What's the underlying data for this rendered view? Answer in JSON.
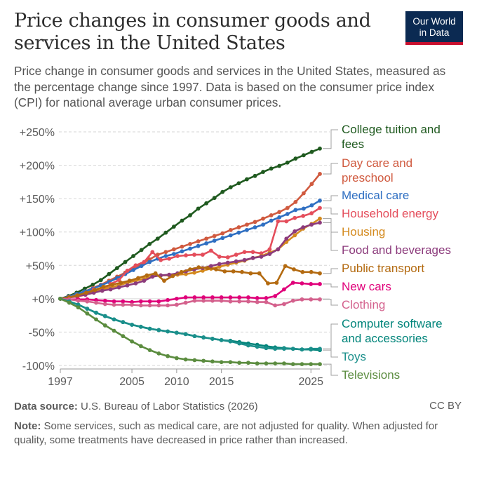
{
  "header": {
    "title": "Price changes in consumer goods and services in the United States",
    "subtitle": "Price change in consumer goods and services in the United States, measured as the percentage change since 1997. Data is based on the consumer price index (CPI) for national average urban consumer prices.",
    "logo_line1": "Our World",
    "logo_line2": "in Data"
  },
  "footer": {
    "source_label": "Data source:",
    "source_text": "U.S. Bureau of Labor Statistics (2026)",
    "license": "CC BY",
    "note_label": "Note:",
    "note_text": "Some services, such as medical care, are not adjusted for quality. When adjusted for quality, some treatments have decreased in price rather than increased."
  },
  "chart_data": {
    "type": "line",
    "xlim": [
      1997,
      2026
    ],
    "ylim": [
      -100,
      250
    ],
    "x_ticks": [
      1997,
      2005,
      2010,
      2015,
      2025
    ],
    "x_tick_labels": [
      "1997",
      "2005",
      "2010",
      "2015",
      "2025"
    ],
    "y_ticks": [
      -100,
      -50,
      0,
      50,
      100,
      150,
      200,
      250
    ],
    "y_tick_labels": [
      "-100%",
      "-50%",
      "+0%",
      "+50%",
      "+100%",
      "+150%",
      "+200%",
      "+250%"
    ],
    "grid": "horizontal dashed",
    "legend": "right, labels at line ends",
    "series": [
      {
        "name": "College tuition and fees",
        "color": "#1f5a1f",
        "values": [
          0,
          4,
          9,
          15,
          21,
          28,
          37,
          46,
          55,
          64,
          73,
          82,
          90,
          99,
          108,
          117,
          125,
          135,
          143,
          151,
          160,
          167,
          173,
          179,
          184,
          190,
          195,
          199,
          204,
          210,
          215,
          220,
          225
        ]
      },
      {
        "name": "Day care and preschool",
        "color": "#d05a3f",
        "values": [
          0,
          3,
          7,
          11,
          16,
          21,
          27,
          33,
          39,
          46,
          52,
          59,
          66,
          70,
          74,
          78,
          82,
          86,
          90,
          94,
          98,
          103,
          107,
          111,
          115,
          120,
          125,
          130,
          136,
          145,
          158,
          172,
          187
        ]
      },
      {
        "name": "Medical care",
        "color": "#2f6fc2",
        "values": [
          0,
          3,
          7,
          11,
          15,
          20,
          25,
          31,
          37,
          43,
          49,
          55,
          60,
          64,
          67,
          71,
          75,
          79,
          83,
          87,
          91,
          95,
          99,
          103,
          107,
          111,
          117,
          122,
          127,
          133,
          135,
          140,
          147
        ]
      },
      {
        "name": "Household energy",
        "color": "#e44d5b",
        "values": [
          0,
          2,
          3,
          6,
          14,
          12,
          22,
          28,
          42,
          50,
          55,
          70,
          58,
          60,
          64,
          65,
          66,
          66,
          72,
          63,
          62,
          66,
          70,
          70,
          68,
          74,
          116,
          116,
          121,
          124,
          128,
          136
        ]
      },
      {
        "name": "Housing",
        "color": "#d48a1e",
        "values": [
          0,
          2,
          5,
          8,
          11,
          14,
          17,
          20,
          24,
          27,
          30,
          34,
          35,
          35,
          36,
          37,
          39,
          42,
          45,
          48,
          51,
          54,
          57,
          61,
          64,
          69,
          74,
          85,
          95,
          105,
          112,
          120
        ]
      },
      {
        "name": "Food and beverages",
        "color": "#8c3b7c",
        "values": [
          0,
          2,
          4,
          6,
          9,
          12,
          14,
          17,
          20,
          23,
          27,
          33,
          35,
          36,
          38,
          41,
          44,
          46,
          49,
          52,
          54,
          56,
          58,
          61,
          63,
          67,
          74,
          90,
          101,
          107,
          111,
          114
        ]
      },
      {
        "name": "Public transport",
        "color": "#b36a10",
        "values": [
          0,
          2,
          5,
          9,
          13,
          18,
          21,
          24,
          27,
          31,
          35,
          38,
          27,
          34,
          40,
          44,
          47,
          46,
          44,
          41,
          41,
          40,
          38,
          38,
          23,
          24,
          49,
          44,
          40,
          40,
          38
        ]
      },
      {
        "name": "New cars",
        "color": "#e0007a",
        "values": [
          0,
          -1,
          -1,
          -1,
          -2,
          -3,
          -4,
          -4,
          -5,
          -4,
          -4,
          -4,
          -2,
          0,
          2,
          2,
          2,
          2,
          2,
          2,
          2,
          2,
          1,
          1,
          4,
          14,
          24,
          23,
          22,
          22
        ]
      },
      {
        "name": "Clothing",
        "color": "#d4618d",
        "values": [
          0,
          -1,
          -3,
          -4,
          -6,
          -8,
          -9,
          -9,
          -9,
          -10,
          -10,
          -10,
          -10,
          -9,
          -6,
          -3,
          -3,
          -3,
          -3,
          -4,
          -4,
          -4,
          -5,
          -5,
          -10,
          -8,
          -3,
          -1,
          -1,
          -1
        ]
      },
      {
        "name": "Computer software and accessories",
        "color": "#00847a",
        "values": [
          0,
          -4,
          -9,
          -15,
          -21,
          -26,
          -31,
          -35,
          -39,
          -42,
          -45,
          -47,
          -49,
          -51,
          -53,
          -56,
          -58,
          -60,
          -62,
          -63,
          -65,
          -67,
          -69,
          -71,
          -73,
          -74,
          -75,
          -76,
          -76,
          -77
        ]
      },
      {
        "name": "Toys",
        "color": "#1a8f8b",
        "values": [
          0,
          -4,
          -9,
          -15,
          -21,
          -26,
          -31,
          -35,
          -39,
          -42,
          -45,
          -47,
          -49,
          -51,
          -53,
          -56,
          -58,
          -60,
          -62,
          -64,
          -67,
          -70,
          -72,
          -74,
          -75,
          -75,
          -75,
          -76,
          -75,
          -75
        ]
      },
      {
        "name": "Televisions",
        "color": "#5b8c3f",
        "values": [
          0,
          -6,
          -13,
          -22,
          -31,
          -40,
          -48,
          -56,
          -64,
          -71,
          -77,
          -82,
          -86,
          -89,
          -91,
          -92,
          -93,
          -94,
          -95,
          -95,
          -96,
          -96,
          -97,
          -97,
          -97,
          -97,
          -98,
          -98,
          -98,
          -98
        ]
      }
    ]
  }
}
